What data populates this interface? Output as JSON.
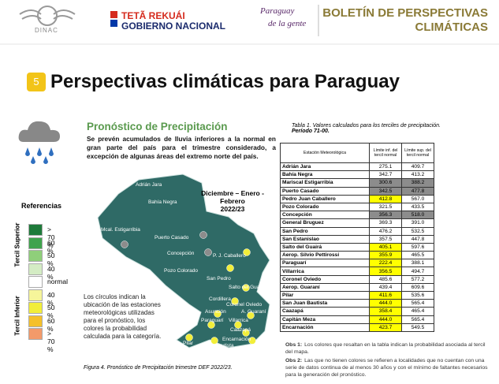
{
  "header": {
    "org": "DINAC",
    "gov_line1": "TETÃ REKUÁI",
    "gov_line2": "GOBIERNO NACIONAL",
    "slogan_line1": "Paraguay",
    "slogan_line2": "de la gente",
    "bulletin_line1": "BOLETÍN DE PERSPECTIVAS",
    "bulletin_line2": "CLIMÁTICAS"
  },
  "section": {
    "number": "5",
    "title": "Perspectivas climáticas para Paraguay"
  },
  "forecast": {
    "heading": "Pronóstico de Precipitación",
    "text": "Se prevén acumulados de lluvia inferiores a la normal en gran parte del país para el trimestre considerado, a excepción de algunas áreas del extremo norte del país.",
    "period_line1": "Diciembre – Enero - Febrero",
    "period_line2": "2022/23",
    "note": "Los círculos indican la ubicación de las estaciones meteorológicas utilizadas para el pronóstico, los colores la probabilidad calculada para la categoría.",
    "caption": "Figura 4. Pronóstico de Precipitación trimestre DEF 2022/23."
  },
  "map": {
    "color": "#2f6a66",
    "stations": [
      {
        "name": "Adrián Jara"
      },
      {
        "name": "Bahía Negra"
      },
      {
        "name": "Mcal. Estigarribia",
        "color": "#8c8c8c"
      },
      {
        "name": "Puerto Casado",
        "color": "#8c8c8c"
      },
      {
        "name": "Concepción",
        "color": "#8c8c8c"
      },
      {
        "name": "P. J. Caballero",
        "color": "#f2ee3a"
      },
      {
        "name": "Pozo Colorado"
      },
      {
        "name": "San Pedro",
        "color": "#f2ee3a"
      },
      {
        "name": "Salto del Guairá",
        "color": "#f2ee3a"
      },
      {
        "name": "Cordillera"
      },
      {
        "name": "Coronel Oviedo",
        "color": "#f2ee3a"
      },
      {
        "name": "Asunción",
        "color": "#f2ee3a"
      },
      {
        "name": "A. Guaraní",
        "color": "#f2ee3a"
      },
      {
        "name": "Paraguarí",
        "color": "#f2ee3a"
      },
      {
        "name": "Villarrica",
        "color": "#f2ee3a"
      },
      {
        "name": "Caazapá",
        "color": "#f2ee3a"
      },
      {
        "name": "S.J. Bautista",
        "color": "#f2ee3a"
      },
      {
        "name": "Pilar",
        "color": "#f2ee3a"
      },
      {
        "name": "Encarnación",
        "color": "#f2ee3a"
      }
    ]
  },
  "legend": {
    "title": "Referencias",
    "upper": "Tercil Superior",
    "lower": "Tercil Inferior",
    "items": [
      {
        "label": "> 70 %",
        "color": "#1e7a3a"
      },
      {
        "label": "60 %",
        "color": "#3fa34d"
      },
      {
        "label": "50 %",
        "color": "#8fcf7a"
      },
      {
        "label": "40 %",
        "color": "#d4ecc4"
      },
      {
        "label": "normal",
        "color": "#ffffff"
      },
      {
        "label": "40 %",
        "color": "#f6f59a"
      },
      {
        "label": "50 %",
        "color": "#f2ee3a"
      },
      {
        "label": "60 %",
        "color": "#f5c02a"
      },
      {
        "label": "> 70 %",
        "color": "#f39a6a"
      }
    ]
  },
  "table": {
    "caption_line1": "Tabla 1. Valores calculados para los terciles de precipitación.",
    "caption_line2": "Período 71-00.",
    "headers": [
      "Estación Meteorológica",
      "Límite inf. del tercil normal",
      "Límite sup. del tercil normal"
    ],
    "rows": [
      {
        "station": "Adrián Jara",
        "lower": "275.1",
        "upper": "409.7"
      },
      {
        "station": "Bahía Negra",
        "lower": "342.7",
        "upper": "413.2"
      },
      {
        "station": "Mariscal Estigarribia",
        "lower": "300.6",
        "upper": "388.2",
        "fill_lower": "#8c8c8c",
        "fill_upper": "#8c8c8c"
      },
      {
        "station": "Puerto Casado",
        "lower": "342.5",
        "upper": "477.8",
        "fill_lower": "#8c8c8c",
        "fill_upper": "#8c8c8c"
      },
      {
        "station": "Pedro Juan Caballero",
        "lower": "412.8",
        "upper": "567.0",
        "fill_lower": "#ffff00"
      },
      {
        "station": "Pozo Colorado",
        "lower": "321.5",
        "upper": "433.5"
      },
      {
        "station": "Concepción",
        "lower": "356.3",
        "upper": "518.0",
        "fill_lower": "#8c8c8c",
        "fill_upper": "#8c8c8c"
      },
      {
        "station": "General Bruguez",
        "lower": "369.3",
        "upper": "391.0"
      },
      {
        "station": "San Pedro",
        "lower": "476.2",
        "upper": "532.5"
      },
      {
        "station": "San Estanislao",
        "lower": "357.5",
        "upper": "447.8"
      },
      {
        "station": "Salto del Guairá",
        "lower": "405.1",
        "upper": "597.6",
        "fill_lower": "#ffff00"
      },
      {
        "station": "Aerop. Silvio Pettirossi",
        "lower": "355.9",
        "upper": "465.5",
        "fill_lower": "#ffff00"
      },
      {
        "station": "Paraguarí",
        "lower": "222.4",
        "upper": "388.1",
        "fill_lower": "#ffff00"
      },
      {
        "station": "Villarrica",
        "lower": "356.5",
        "upper": "494.7",
        "fill_lower": "#ffff00"
      },
      {
        "station": "Coronel Oviedo",
        "lower": "485.6",
        "upper": "577.2"
      },
      {
        "station": "Aerop. Guaraní",
        "lower": "439.4",
        "upper": "609.6"
      },
      {
        "station": "Pilar",
        "lower": "411.6",
        "upper": "535.6",
        "fill_lower": "#ffff00"
      },
      {
        "station": "San Juan Bautista",
        "lower": "444.0",
        "upper": "565.4",
        "fill_lower": "#ffff00"
      },
      {
        "station": "Caazapá",
        "lower": "358.4",
        "upper": "465.4",
        "fill_lower": "#ffff00"
      },
      {
        "station": "Capitán Meza",
        "lower": "444.0",
        "upper": "565.4",
        "fill_lower": "#ffff00"
      },
      {
        "station": "Encarnación",
        "lower": "423.7",
        "upper": "549.5",
        "fill_lower": "#ffff00"
      }
    ]
  },
  "observations": [
    {
      "label": "Obs 1:",
      "text": "Los colores que resaltan en la tabla indican la probabilidad asociada al tercil del mapa."
    },
    {
      "label": "Obs 2:",
      "text": "Las que no tienen colores se refieren a localidades que no cuentan con una serie de datos continua de al menos 30 años y con el mínimo de faltantes necesarios para la generación del pronóstico."
    }
  ]
}
